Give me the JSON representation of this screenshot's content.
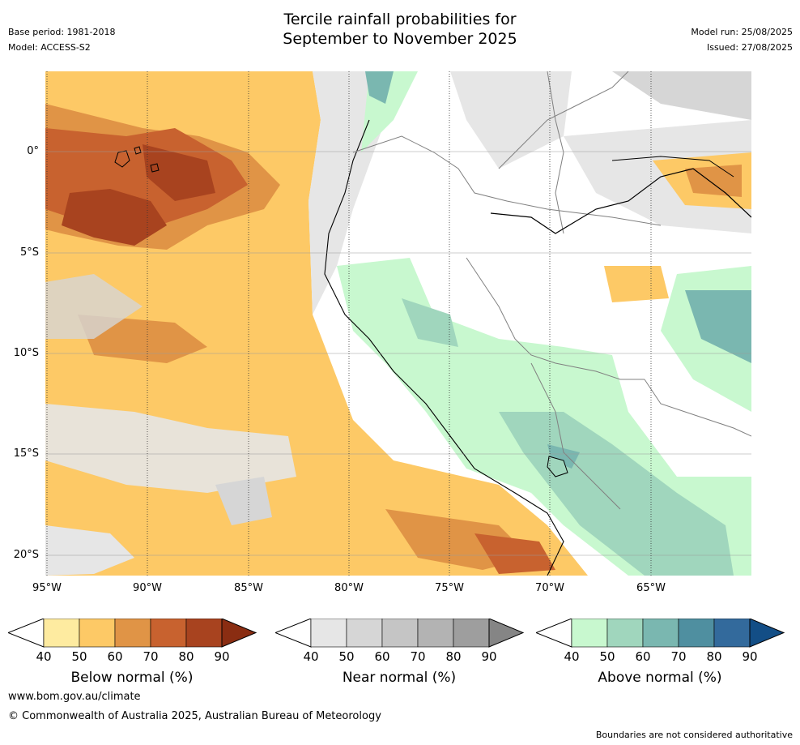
{
  "header": {
    "title_line1": "Tercile rainfall probabilities for",
    "title_line2": "September to November 2025",
    "base_period": "Base period: 1981-2018",
    "model": "Model: ACCESS-S2",
    "model_run": "Model run: 25/08/2025",
    "issued": "Issued: 27/08/2025"
  },
  "map": {
    "lat_labels": [
      "0°",
      "5°S",
      "10°S",
      "15°S",
      "20°S"
    ],
    "lon_labels": [
      "95°W",
      "90°W",
      "85°W",
      "80°W",
      "75°W",
      "70°W",
      "65°W"
    ]
  },
  "colorbars": [
    {
      "caption": "Below normal (%)",
      "ticks": [
        "40",
        "50",
        "60",
        "70",
        "80",
        "90"
      ],
      "colors": [
        "#ffffff",
        "#feeba0",
        "#fdc966",
        "#e09446",
        "#c8622f",
        "#a8431f",
        "#8a2d12"
      ]
    },
    {
      "caption": "Near normal (%)",
      "ticks": [
        "40",
        "50",
        "60",
        "70",
        "80",
        "90"
      ],
      "colors": [
        "#ffffff",
        "#e6e6e6",
        "#d6d6d6",
        "#c5c5c5",
        "#b3b3b3",
        "#9e9e9e",
        "#858585"
      ]
    },
    {
      "caption": "Above normal (%)",
      "ticks": [
        "40",
        "50",
        "60",
        "70",
        "80",
        "90"
      ],
      "colors": [
        "#ffffff",
        "#c8f8cf",
        "#a0d6bd",
        "#7ab7b0",
        "#4f8fa0",
        "#336a9c",
        "#134e86"
      ]
    }
  ],
  "footer": {
    "website": "www.bom.gov.au/climate",
    "copyright": "© Commonwealth of Australia 2025, Australian Bureau of Meteorology",
    "disclaimer": "Boundaries are not considered authoritative"
  }
}
